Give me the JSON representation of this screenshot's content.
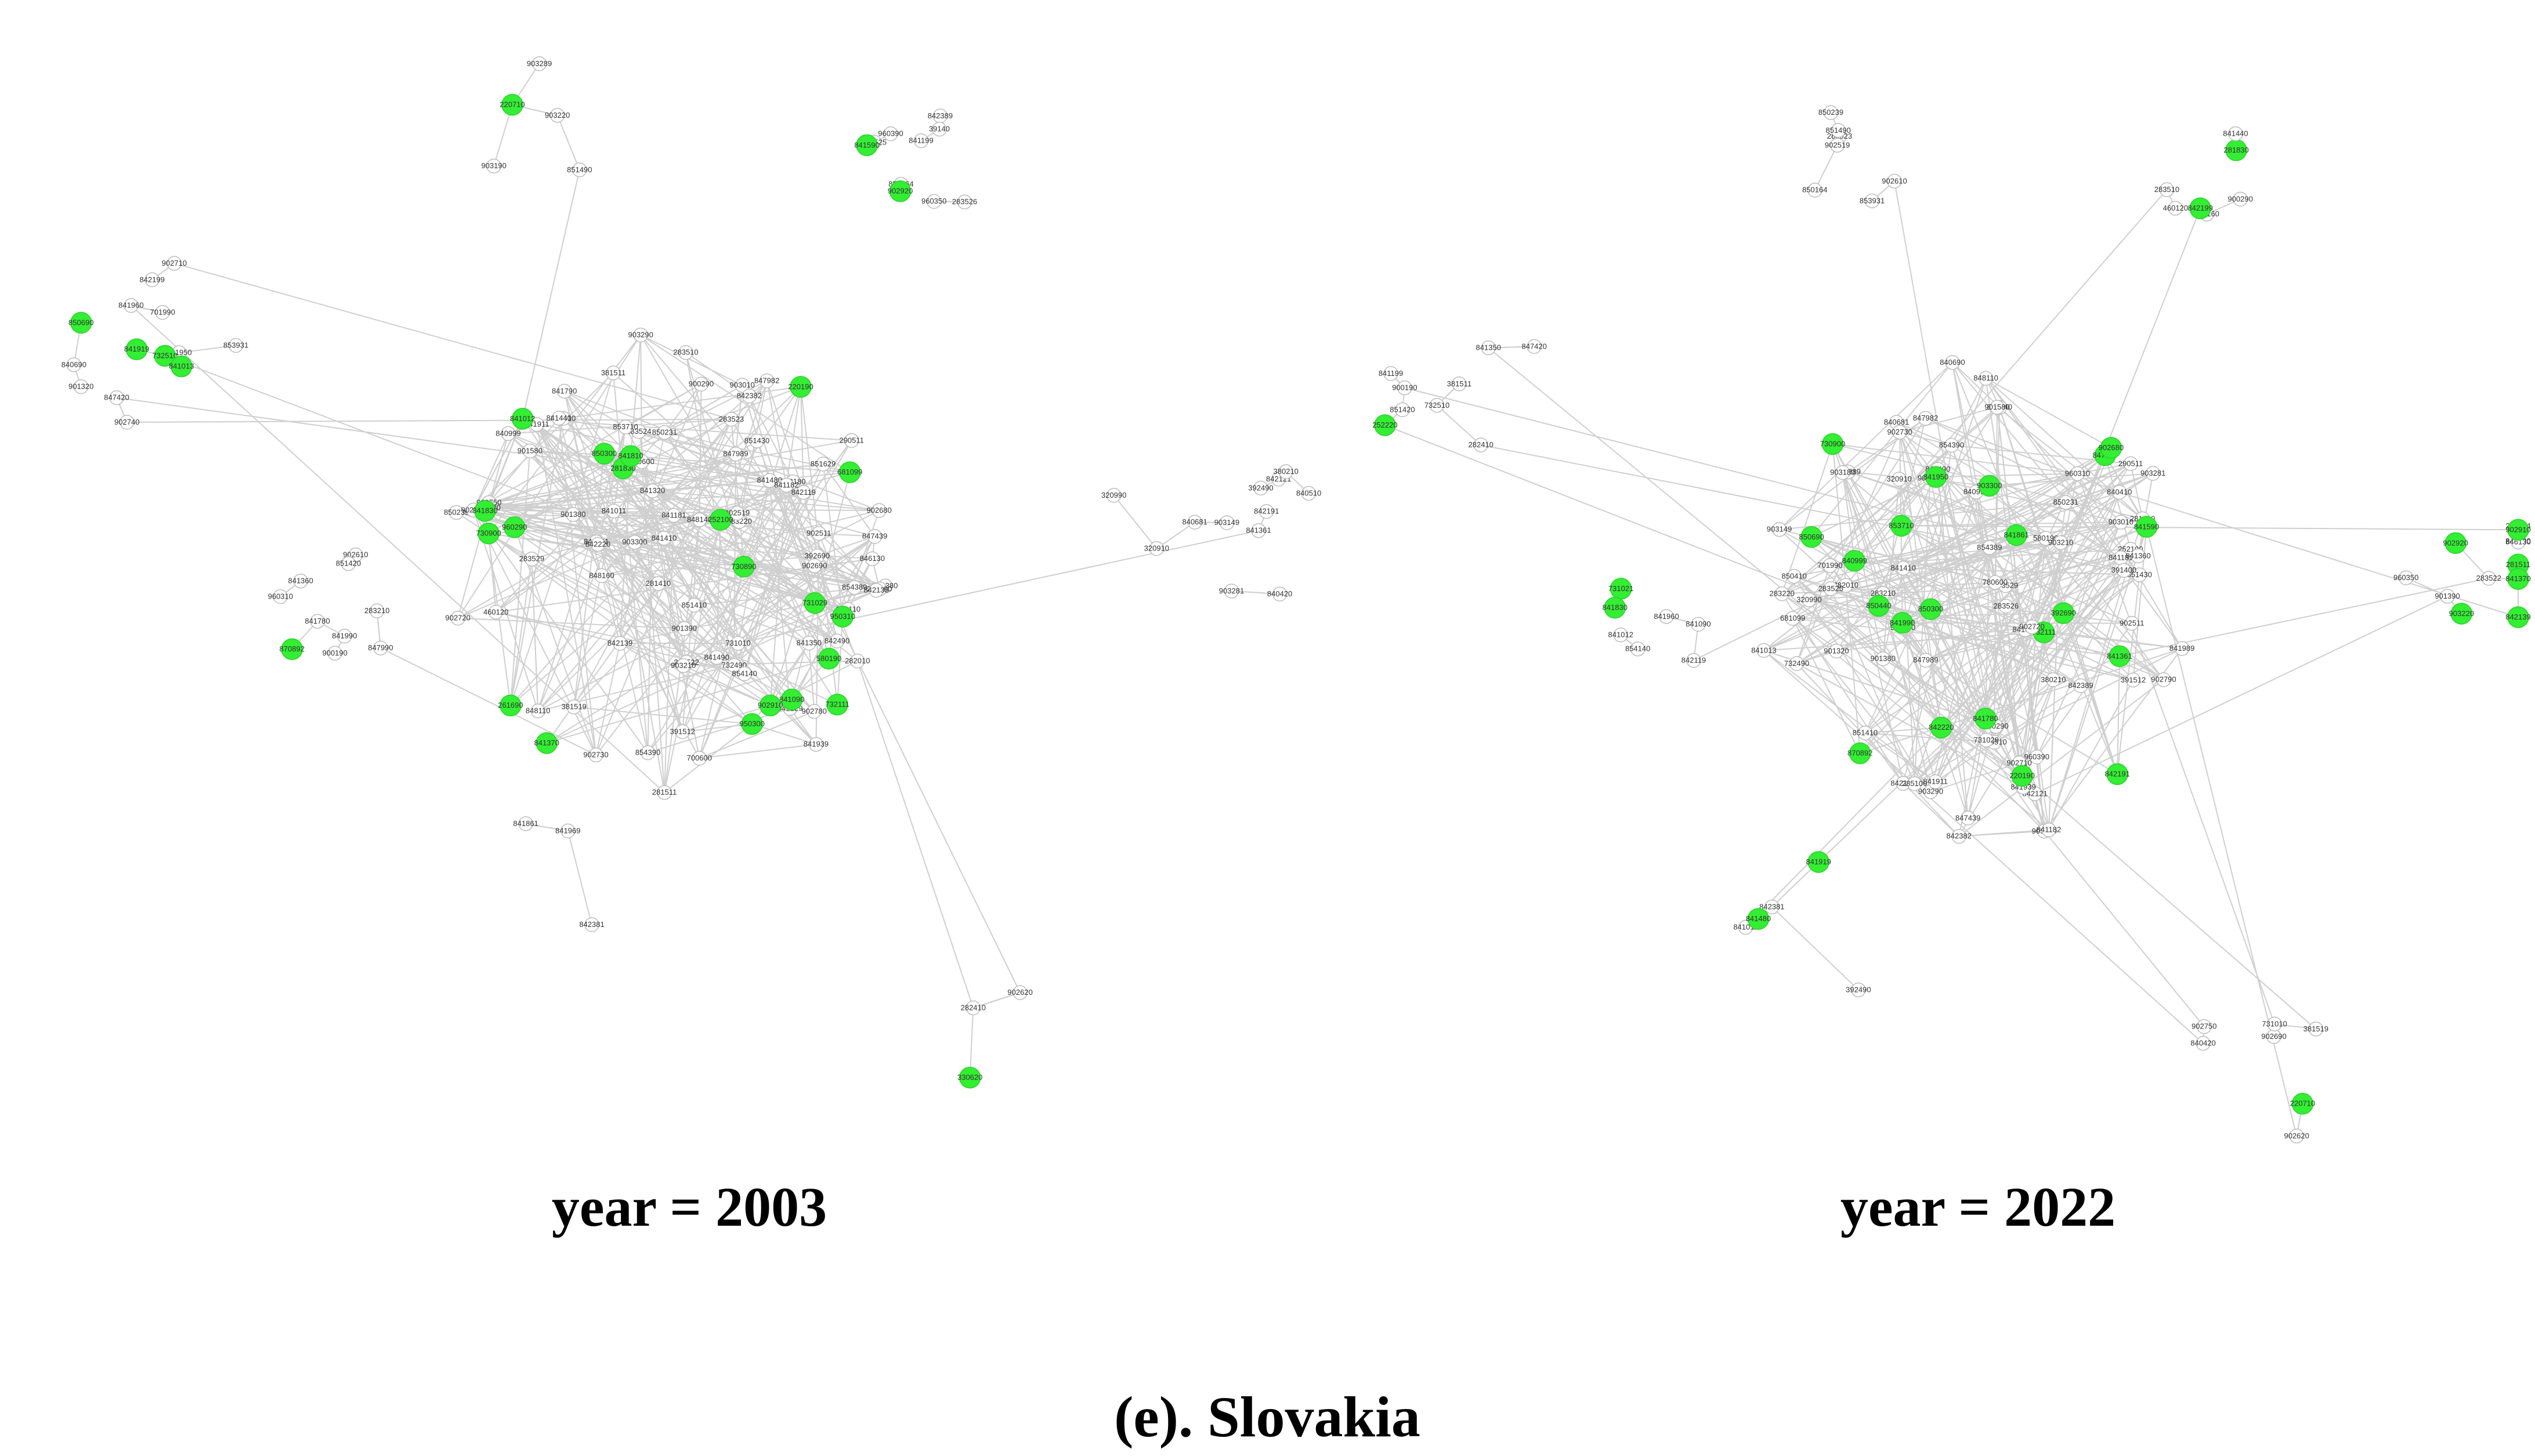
{
  "figure": {
    "caption_left": "year = 2003",
    "caption_right": "year = 2022",
    "panel_title": "(e). Slovakia"
  },
  "colors": {
    "highlight_node": "#33ee33",
    "plain_node": "#ffffff",
    "node_stroke": "#bdbdbd",
    "edge": "#cfcfcf",
    "label": "#333333"
  },
  "networks": [
    {
      "year": "2003",
      "highlighted": [
        "950300",
        "960290",
        "950310",
        "252100",
        "681099",
        "732510",
        "850690",
        "841013",
        "841012",
        "841090",
        "580190",
        "732111",
        "850300",
        "870892",
        "220710",
        "330620",
        "730890",
        "731029",
        "730900",
        "220190",
        "841830",
        "841590",
        "841919",
        "902920",
        "841370",
        "841810",
        "902910",
        "281830",
        "261690"
      ],
      "labels": [
        "283523",
        "283524",
        "283522",
        "283529",
        "282010",
        "283525",
        "283526",
        "701990",
        "700600",
        "841790",
        "850231",
        "732490",
        "281830",
        "850164",
        "847420",
        "841861",
        "840999",
        "391512",
        "842139",
        "392690",
        "853710",
        "960390",
        "960310",
        "853931",
        "840991",
        "841011",
        "848160",
        "850410",
        "903210",
        "903220",
        "841361",
        "841780",
        "283220",
        "850239",
        "841490",
        "841320",
        "903290",
        "842121",
        "960350",
        "841950",
        "841480",
        "841440",
        "281410",
        "290511",
        "848110",
        "840690",
        "841990",
        "842199",
        "848140",
        "842220",
        "842490",
        "846130",
        "847982",
        "841199",
        "903289",
        "840681",
        "851410",
        "902680",
        "902690",
        "851629",
        "841939",
        "902620",
        "841969",
        "847990",
        "903180",
        "902519",
        "902511",
        "847989",
        "851430",
        "840420",
        "902610",
        "903190",
        "283510",
        "902380",
        "902730",
        "902780",
        "903300",
        "840510",
        "842191",
        "841960",
        "842119",
        "902750",
        "902720",
        "902790",
        "842129",
        "902710",
        "903281",
        "842381",
        "381519",
        "381511",
        "285100",
        "903010",
        "901580",
        "903149",
        "901320",
        "900190",
        "900290",
        "901390",
        "842382",
        "854389",
        "841911",
        "902740",
        "380210",
        "282410",
        "460120",
        "854140",
        "854390",
        "901380",
        "847439",
        "842389",
        "320990",
        "392490",
        "731010",
        "280110",
        "281511",
        "780600",
        "252220",
        "320910",
        "851420",
        "851490",
        "842135",
        "841350",
        "841410",
        "841182",
        "841181",
        "283210",
        "39140",
        "841360"
      ]
    },
    {
      "year": "2022",
      "highlighted": [
        "220710",
        "252220",
        "731021",
        "730900",
        "732111",
        "220190",
        "281511",
        "850690",
        "850300",
        "870892",
        "841861",
        "842139",
        "841919",
        "902920",
        "841361",
        "840999",
        "841590",
        "392690",
        "853710",
        "841830",
        "903220",
        "841370",
        "841990",
        "842220",
        "847990",
        "902680",
        "842191",
        "842199",
        "281830",
        "841480",
        "902910",
        "903300",
        "841950",
        "841780",
        "850440"
      ],
      "labels": [
        "840410",
        "840490",
        "840290",
        "252100",
        "681099",
        "283523",
        "283524",
        "283522",
        "283529",
        "282010",
        "283525",
        "283526",
        "841013",
        "841012",
        "841090",
        "732510",
        "701990",
        "580190",
        "732111",
        "850231",
        "732490",
        "281830",
        "850164",
        "847420",
        "391512",
        "903210",
        "840991",
        "960390",
        "960310",
        "853931",
        "841011",
        "848160",
        "850410",
        "283220",
        "841320",
        "903290",
        "842121",
        "960350",
        "850239",
        "841440",
        "281410",
        "290511",
        "848110",
        "840690",
        "848140",
        "842490",
        "846130",
        "841199",
        "903289",
        "840681",
        "851410",
        "847982",
        "841939",
        "902690",
        "902620",
        "902519",
        "902511",
        "903180",
        "841989",
        "847989",
        "851430",
        "840420",
        "283510",
        "902610",
        "903190",
        "902730",
        "902780",
        "903300",
        "840510",
        "841960",
        "842119",
        "902750",
        "902720",
        "902790",
        "842129",
        "902710",
        "903281",
        "842381",
        "381519",
        "381511",
        "285100",
        "903010",
        "901580",
        "903149",
        "901320",
        "900190",
        "900290",
        "901390",
        "842382",
        "854389",
        "841911",
        "902740",
        "380210",
        "282410",
        "460120",
        "854140",
        "854390",
        "901380",
        "847439",
        "842389",
        "320990",
        "392490",
        "731010",
        "281511",
        "780600",
        "320910",
        "731029",
        "730900",
        "283210",
        "851420",
        "851490",
        "841350",
        "841182",
        "841181",
        "391400",
        "841360",
        "841410"
      ]
    }
  ]
}
